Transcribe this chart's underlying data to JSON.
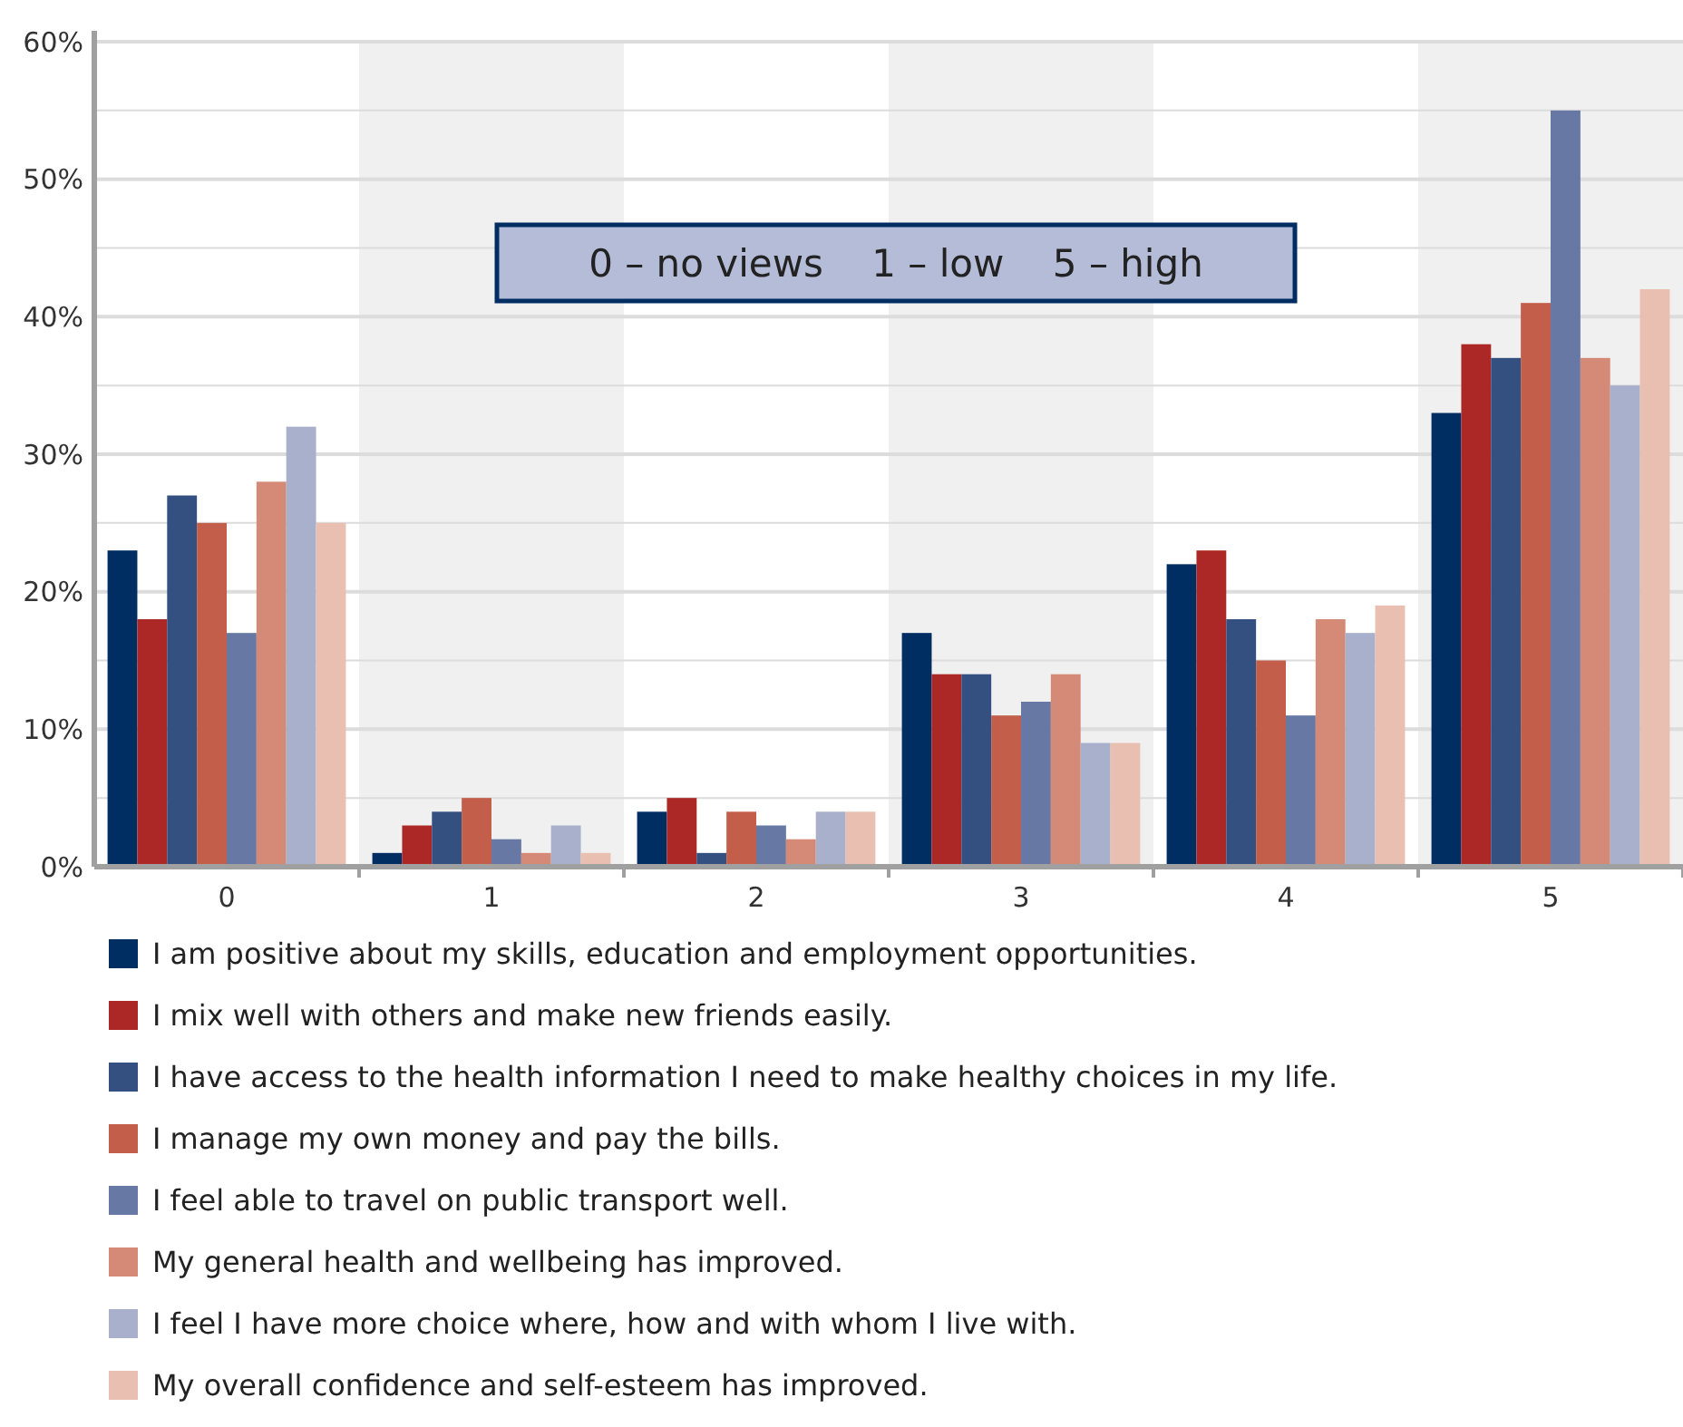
{
  "chart_data": {
    "type": "bar",
    "categories": [
      "0",
      "1",
      "2",
      "3",
      "4",
      "5"
    ],
    "series": [
      {
        "name": "I am positive about my skills, education and employment opportunities.",
        "color": "#002d62",
        "values": [
          23,
          1,
          4,
          17,
          22,
          33
        ]
      },
      {
        "name": "I mix well with others and make new friends easily.",
        "color": "#ac2826",
        "values": [
          18,
          3,
          5,
          14,
          23,
          38
        ]
      },
      {
        "name": "I have access to the health information I need to make healthy choices in my life.",
        "color": "#345081",
        "values": [
          27,
          4,
          1,
          14,
          18,
          37
        ]
      },
      {
        "name": "I manage my own money and pay the bills.",
        "color": "#c25e4a",
        "values": [
          25,
          5,
          4,
          11,
          15,
          41
        ]
      },
      {
        "name": "I feel able to travel on public transport well.",
        "color": "#6878a4",
        "values": [
          17,
          2,
          3,
          12,
          11,
          55
        ]
      },
      {
        "name": "My general health and wellbeing has improved.",
        "color": "#d58977",
        "values": [
          28,
          1,
          2,
          14,
          18,
          37
        ]
      },
      {
        "name": "I feel I have more choice where, how and with whom I live with.",
        "color": "#a8b0cc",
        "values": [
          32,
          3,
          4,
          9,
          17,
          35
        ]
      },
      {
        "name": "My overall confidence and self-esteem has improved.",
        "color": "#e8bfb0",
        "values": [
          25,
          1,
          4,
          9,
          19,
          42
        ]
      }
    ],
    "ylim": [
      0,
      60
    ],
    "yticks": [
      {
        "value": 0,
        "label": "0%"
      },
      {
        "value": 5,
        "label": null
      },
      {
        "value": 10,
        "label": "10%"
      },
      {
        "value": 15,
        "label": null
      },
      {
        "value": 20,
        "label": "20%"
      },
      {
        "value": 25,
        "label": null
      },
      {
        "value": 30,
        "label": "30%"
      },
      {
        "value": 35,
        "label": null
      },
      {
        "value": 40,
        "label": "40%"
      },
      {
        "value": 45,
        "label": null
      },
      {
        "value": 50,
        "label": "50%"
      },
      {
        "value": 55,
        "label": null
      },
      {
        "value": 60,
        "label": "60%"
      }
    ],
    "grid": "y",
    "legend": "bottom",
    "annotations": [
      "0 – no views    1 – low    5 – high"
    ]
  }
}
